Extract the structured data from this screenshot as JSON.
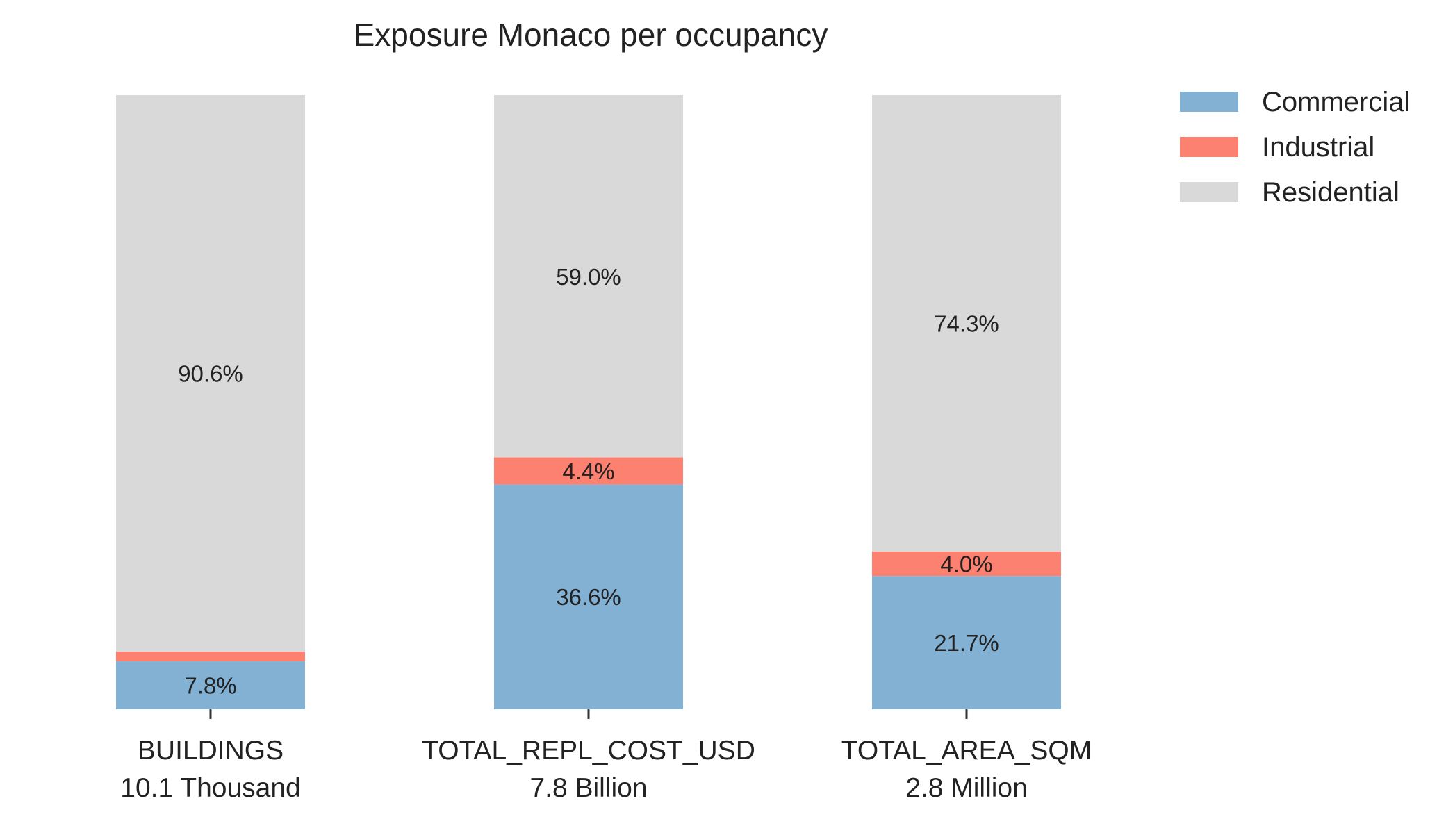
{
  "chart_data": {
    "type": "bar",
    "stacked": true,
    "normalized_percent": true,
    "title": "Exposure Monaco per occupancy",
    "categories": [
      "BUILDINGS",
      "TOTAL_REPL_COST_USD",
      "TOTAL_AREA_SQM"
    ],
    "category_totals": [
      "10.1 Thousand",
      "7.8 Billion",
      "2.8 Million"
    ],
    "series": [
      {
        "name": "Commercial",
        "color": "#82b1d3",
        "values": [
          7.8,
          36.6,
          21.7
        ],
        "labels": [
          "7.8%",
          "36.6%",
          "21.7%"
        ]
      },
      {
        "name": "Industrial",
        "color": "#fc8170",
        "values": [
          1.6,
          4.4,
          4.0
        ],
        "labels": [
          "",
          "4.4%",
          "4.0%"
        ]
      },
      {
        "name": "Residential",
        "color": "#d9d9d9",
        "values": [
          90.6,
          59.0,
          74.3
        ],
        "labels": [
          "90.6%",
          "59.0%",
          "74.3%"
        ]
      }
    ],
    "ylim": [
      0,
      100
    ],
    "grid": false,
    "legend_position": "top-right"
  }
}
